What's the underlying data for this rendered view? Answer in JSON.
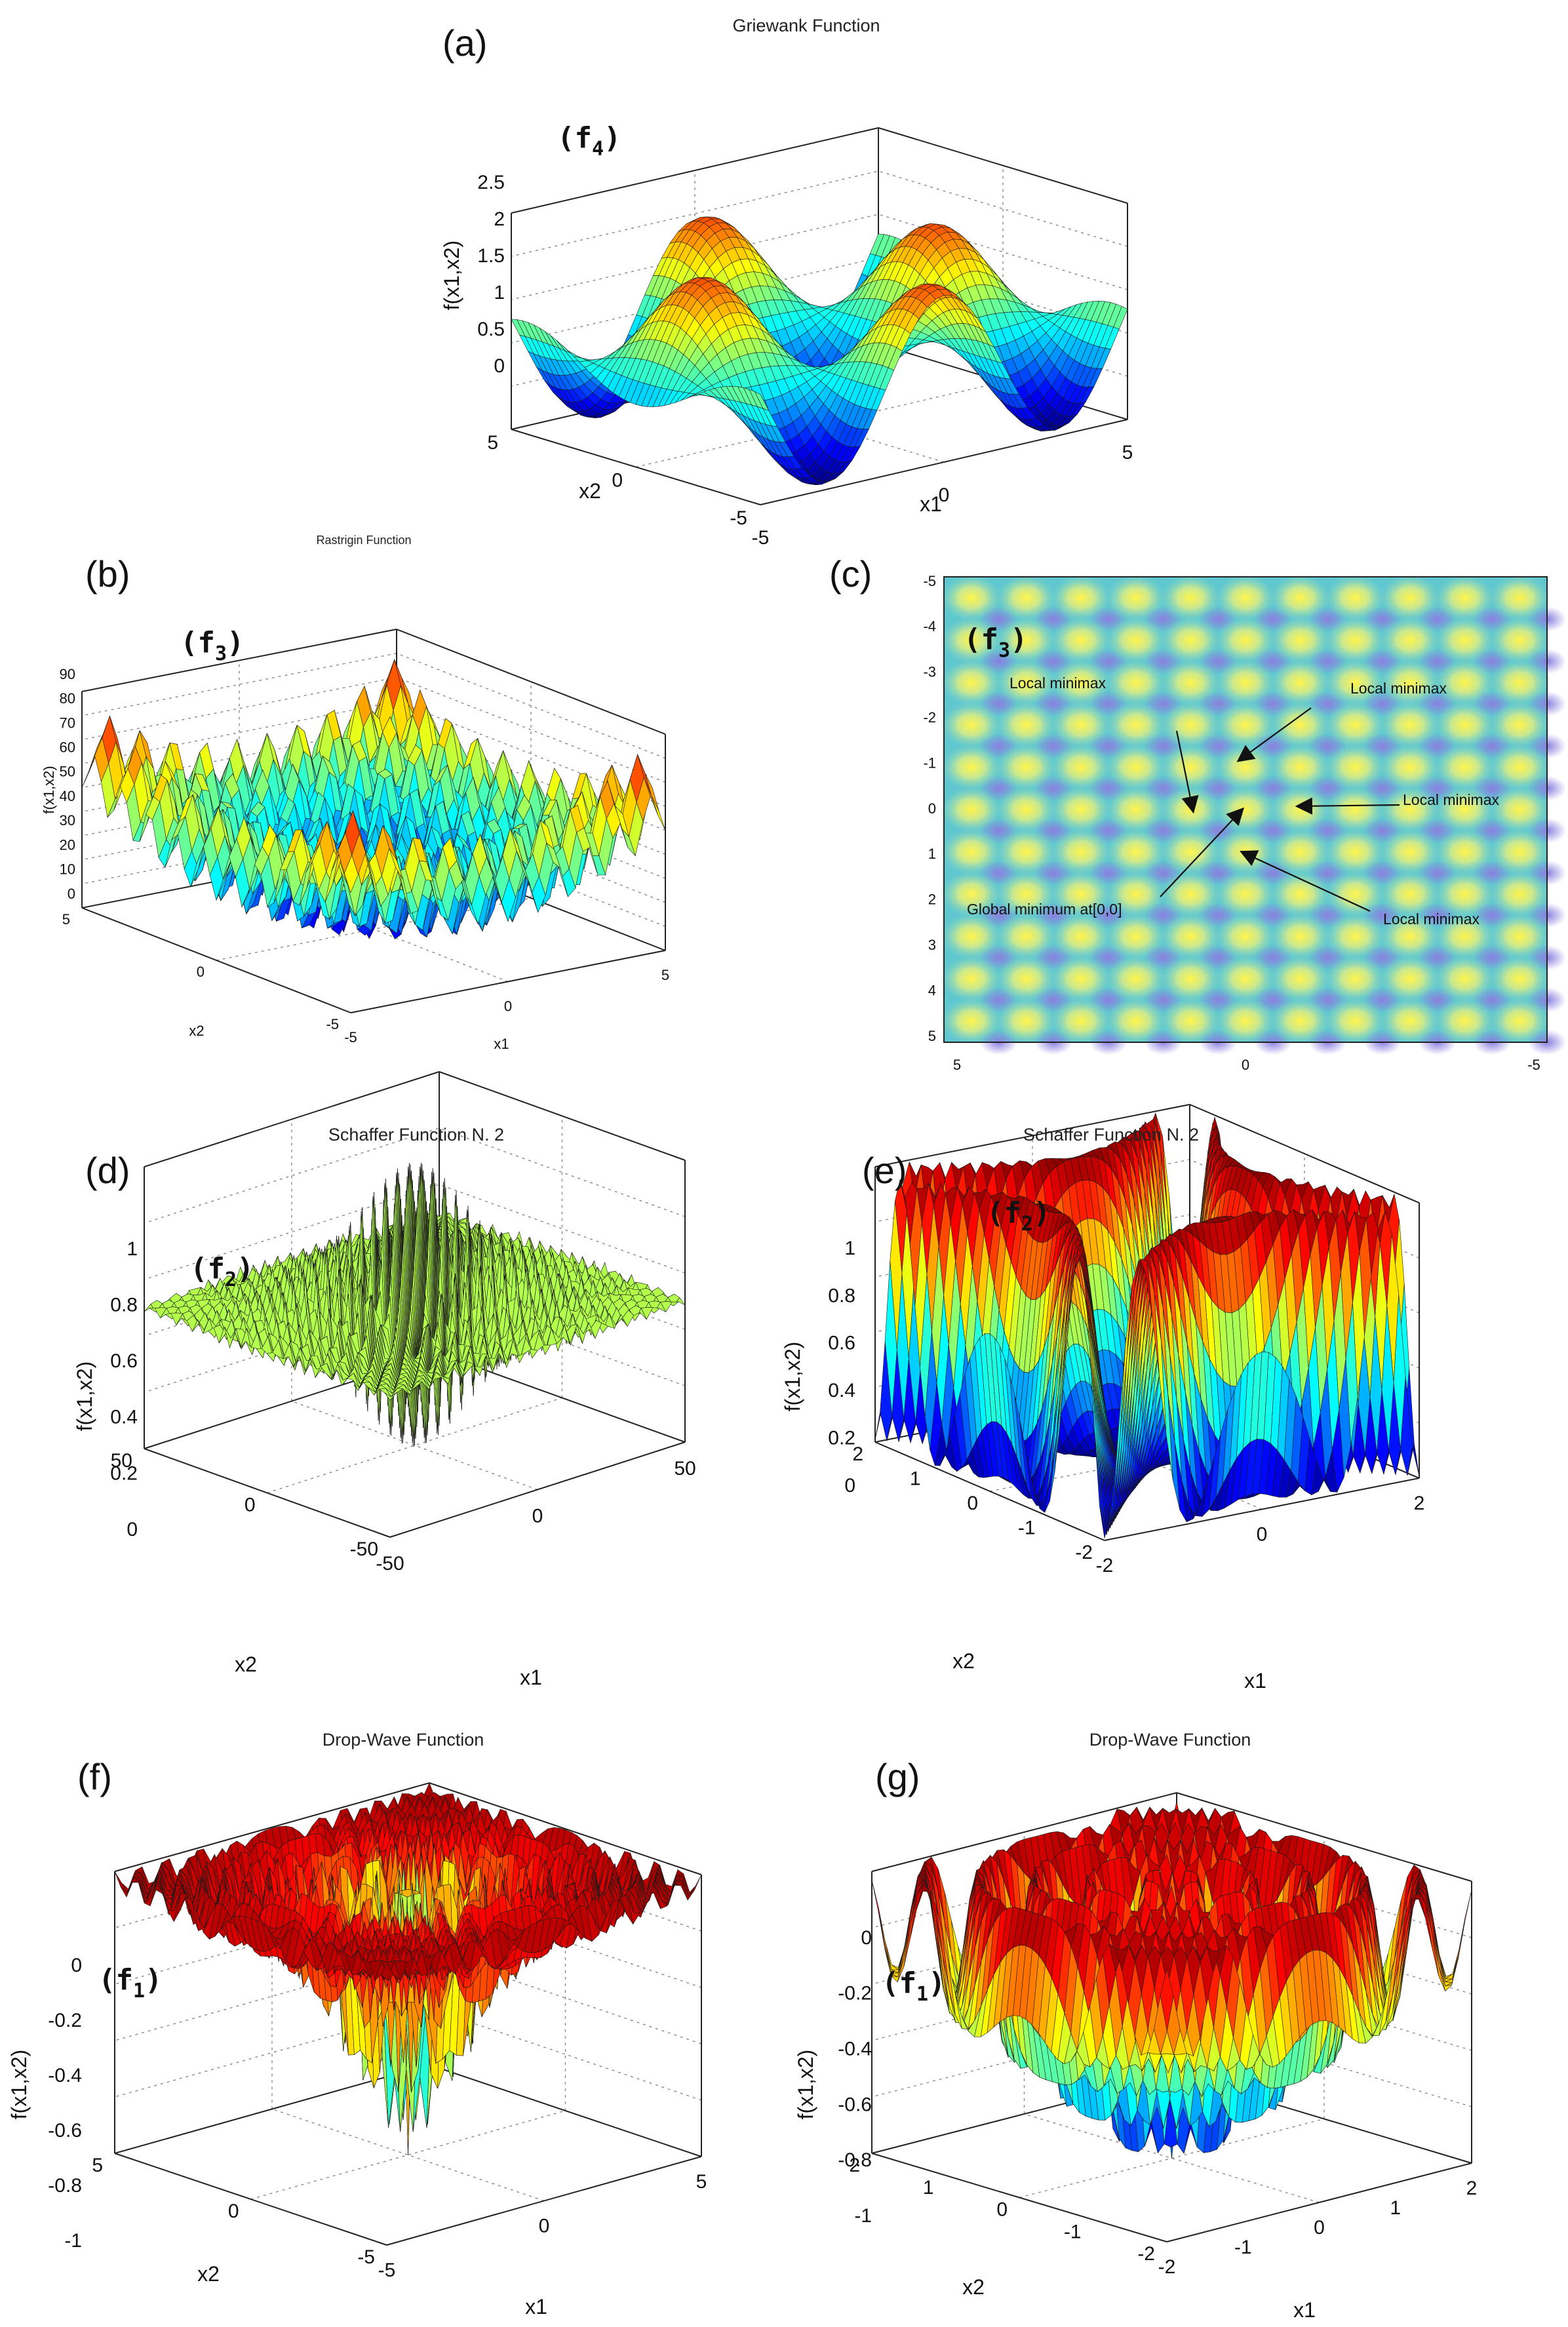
{
  "panels": {
    "a": {
      "tag": "(a)",
      "title": "Griewank Function",
      "flabel": "f",
      "fsub": "4",
      "zticks": [
        "0",
        "0.5",
        "1",
        "1.5",
        "2",
        "2.5"
      ],
      "x1ticks": [
        "-5",
        "0",
        "5"
      ],
      "x2ticks": [
        "5",
        "0",
        "-5"
      ],
      "zlabel": "f(x1,x2)",
      "xlabel": "x1",
      "ylabel": "x2"
    },
    "b": {
      "tag": "(b)",
      "title": "Rastrigin Function",
      "flabel": "f",
      "fsub": "3",
      "zticks": [
        "0",
        "10",
        "20",
        "30",
        "40",
        "50",
        "60",
        "70",
        "80",
        "90"
      ],
      "x1ticks": [
        "-5",
        "0",
        "5"
      ],
      "x2ticks": [
        "5",
        "0",
        "-5"
      ],
      "zlabel": "f(x1,x2)",
      "xlabel": "x1",
      "ylabel": "x2"
    },
    "c": {
      "tag": "(c)",
      "flabel": "f",
      "fsub": "3",
      "yticks": [
        "-5",
        "-4",
        "-3",
        "-2",
        "-1",
        "0",
        "1",
        "2",
        "3",
        "4",
        "5"
      ],
      "xticks": [
        "5",
        "0",
        "-5"
      ],
      "annotations": [
        "Local minimax",
        "Local minimax",
        "Local minimax",
        "Global minimum at[0,0]",
        "Local minimax"
      ]
    },
    "d": {
      "tag": "(d)",
      "title": "Schaffer Function N. 2",
      "flabel": "f",
      "fsub": "2",
      "zticks": [
        "0",
        "0.2",
        "0.4",
        "0.6",
        "0.8",
        "1"
      ],
      "x1ticks": [
        "-50",
        "0",
        "50"
      ],
      "x2ticks": [
        "50",
        "0",
        "-50"
      ],
      "zlabel": "f(x1,x2)",
      "xlabel": "x1",
      "ylabel": "x2"
    },
    "e": {
      "tag": "(e)",
      "title": "Schaffer Function N. 2",
      "flabel": "f",
      "fsub": "2",
      "zticks": [
        "0",
        "0.2",
        "0.4",
        "0.6",
        "0.8",
        "1"
      ],
      "x1ticks": [
        "-2",
        "0",
        "2"
      ],
      "x2ticks": [
        "2",
        "1",
        "0",
        "-1",
        "-2"
      ],
      "zlabel": "f(x1,x2)",
      "xlabel": "x1",
      "ylabel": "x2"
    },
    "f": {
      "tag": "(f)",
      "title": "Drop-Wave Function",
      "flabel": "f",
      "fsub": "1",
      "zticks": [
        "-1",
        "-0.8",
        "-0.6",
        "-0.4",
        "-0.2",
        "0"
      ],
      "x1ticks": [
        "-5",
        "0",
        "5"
      ],
      "x2ticks": [
        "5",
        "0",
        "-5"
      ],
      "zlabel": "f(x1,x2)",
      "xlabel": "x1",
      "ylabel": "x2"
    },
    "g": {
      "tag": "(g)",
      "title": "Drop-Wave Function",
      "flabel": "f",
      "fsub": "1",
      "zticks": [
        "-1",
        "-0.8",
        "-0.6",
        "-0.4",
        "-0.2",
        "0"
      ],
      "x1ticks": [
        "-2",
        "-1",
        "0",
        "1",
        "2"
      ],
      "x2ticks": [
        "2",
        "1",
        "0",
        "-1",
        "-2"
      ],
      "zlabel": "f(x1,x2)",
      "xlabel": "x1",
      "ylabel": "x2"
    }
  },
  "chart_data": [
    {
      "type": "surface",
      "panel": "a",
      "title": "Griewank Function",
      "function": "f4",
      "xlabel": "x1",
      "ylabel": "x2",
      "zlabel": "f(x1,x2)",
      "xlim": [
        -5,
        5
      ],
      "ylim": [
        -5,
        5
      ],
      "zlim": [
        0,
        2.5
      ]
    },
    {
      "type": "surface",
      "panel": "b",
      "title": "Rastrigin Function",
      "function": "f3",
      "xlabel": "x1",
      "ylabel": "x2",
      "zlabel": "f(x1,x2)",
      "xlim": [
        -5,
        5
      ],
      "ylim": [
        -5,
        5
      ],
      "zlim": [
        0,
        90
      ]
    },
    {
      "type": "heatmap",
      "panel": "c",
      "function": "f3",
      "xlim": [
        5,
        -5
      ],
      "ylim": [
        -5,
        5
      ],
      "annotations": [
        {
          "text": "Local minimax",
          "target": [
            0,
            -1
          ]
        },
        {
          "text": "Local minimax",
          "target": [
            1,
            0
          ]
        },
        {
          "text": "Local minimax",
          "target": [
            -1,
            0
          ]
        },
        {
          "text": "Global minimum at[0,0]",
          "target": [
            0,
            0
          ]
        },
        {
          "text": "Local minimax",
          "target": [
            0,
            1
          ]
        }
      ]
    },
    {
      "type": "surface",
      "panel": "d",
      "title": "Schaffer Function N. 2",
      "function": "f2",
      "xlabel": "x1",
      "ylabel": "x2",
      "zlabel": "f(x1,x2)",
      "xlim": [
        -50,
        50
      ],
      "ylim": [
        -50,
        50
      ],
      "zlim": [
        0,
        1
      ]
    },
    {
      "type": "surface",
      "panel": "e",
      "title": "Schaffer Function N. 2",
      "function": "f2",
      "xlabel": "x1",
      "ylabel": "x2",
      "zlabel": "f(x1,x2)",
      "xlim": [
        -2,
        2
      ],
      "ylim": [
        -2,
        2
      ],
      "zlim": [
        0,
        1
      ]
    },
    {
      "type": "surface",
      "panel": "f",
      "title": "Drop-Wave Function",
      "function": "f1",
      "xlabel": "x1",
      "ylabel": "x2",
      "zlabel": "f(x1,x2)",
      "xlim": [
        -5,
        5
      ],
      "ylim": [
        -5,
        5
      ],
      "zlim": [
        -1,
        0
      ]
    },
    {
      "type": "surface",
      "panel": "g",
      "title": "Drop-Wave Function",
      "function": "f1",
      "xlabel": "x1",
      "ylabel": "x2",
      "zlabel": "f(x1,x2)",
      "xlim": [
        -2,
        2
      ],
      "ylim": [
        -2,
        2
      ],
      "zlim": [
        -1,
        0
      ]
    }
  ]
}
